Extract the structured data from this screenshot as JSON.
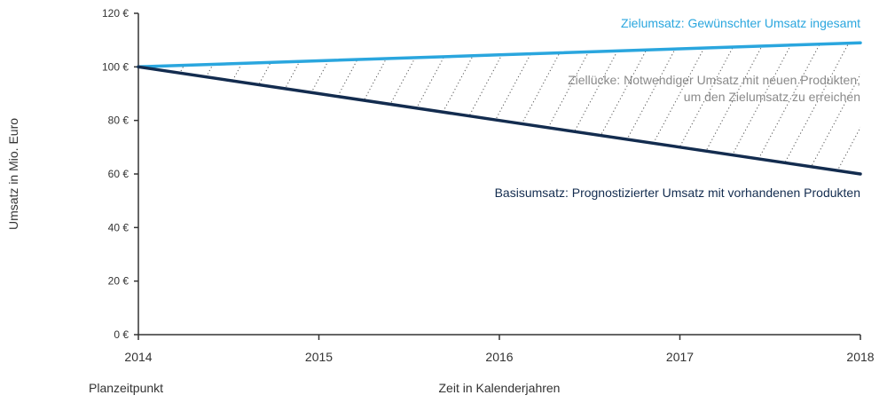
{
  "chart_data": {
    "type": "line",
    "x": [
      2014,
      2015,
      2016,
      2017,
      2018
    ],
    "xtick_labels": [
      "2014",
      "2015",
      "2016",
      "2017",
      "2018"
    ],
    "ylim": [
      0,
      120
    ],
    "yticks": [
      0,
      20,
      40,
      60,
      80,
      100,
      120
    ],
    "ytick_labels": [
      "0 €",
      "20 €",
      "40 €",
      "60 €",
      "80 €",
      "100 €",
      "120 €"
    ],
    "ylabel": "Umsatz in Mio. Euro",
    "xlabel": "Zeit in Kalenderjahren",
    "x_start_label": "Planzeitpunkt",
    "grid": false,
    "series": [
      {
        "name": "Zielumsatz: Gewünschter Umsatz ingesamt",
        "values": [
          100,
          102.25,
          104.5,
          106.75,
          109
        ],
        "color": "#2aa6de"
      },
      {
        "name": "Basisumsatz: Prognostizierter Umsatz mit vorhandenen Produkten",
        "values": [
          100,
          90,
          80,
          70,
          60
        ],
        "color": "#132c4f"
      }
    ],
    "gap_annotation": {
      "lines": [
        "Ziellücke: Notwendiger Umsatz mit neuen Produkten,",
        "um den Zielumsatz zu erreichen"
      ],
      "color": "#8a8a8a"
    }
  }
}
